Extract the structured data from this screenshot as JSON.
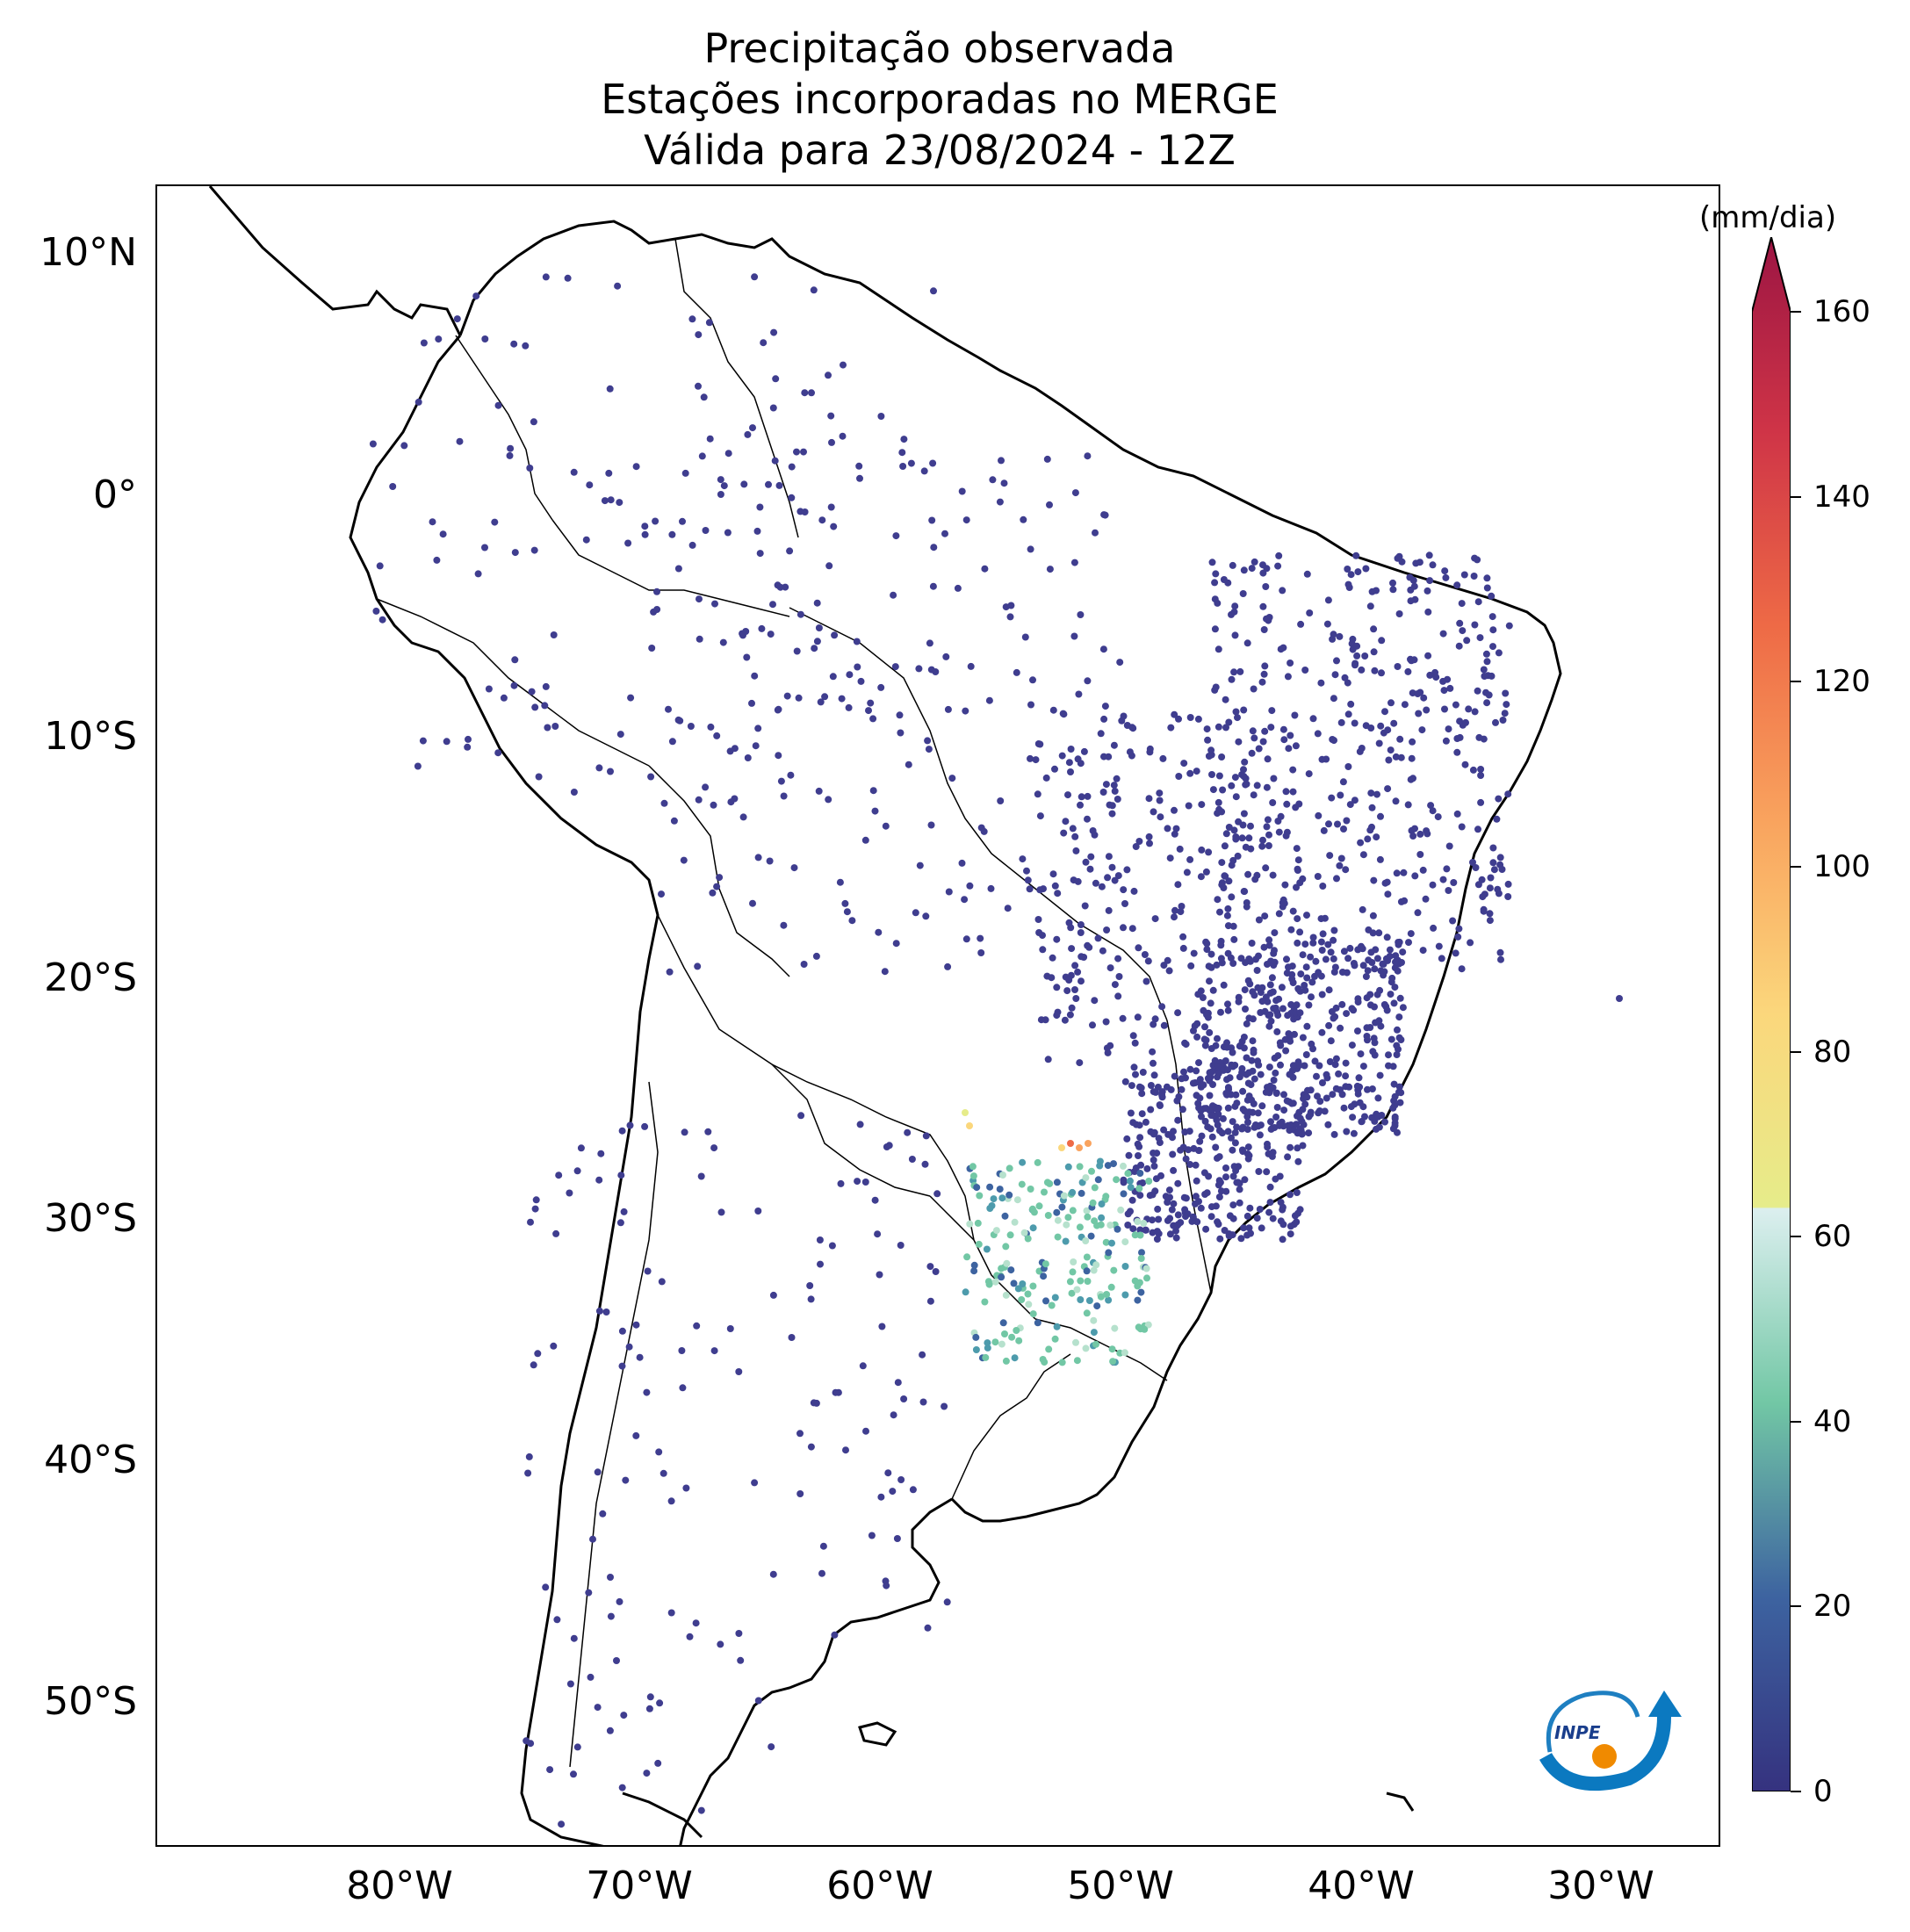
{
  "title": {
    "line1": "Precipitação observada",
    "line2": "Estações incorporadas no MERGE",
    "line3": "Válida para 23/08/2024 - 12Z"
  },
  "map": {
    "lat_labels": [
      "10°N",
      "0°",
      "10°S",
      "20°S",
      "30°S",
      "40°S",
      "50°S"
    ],
    "lon_labels": [
      "80°W",
      "70°W",
      "60°W",
      "50°W",
      "40°W",
      "30°W"
    ],
    "extent": {
      "lon_min": -90,
      "lon_max": -25,
      "lat_min": -56,
      "lat_max": 13
    },
    "station_default_color": "#3f3d8f"
  },
  "colorbar": {
    "unit": "(mm/dia)",
    "ticks": [
      "0",
      "20",
      "40",
      "60",
      "80",
      "100",
      "120",
      "140",
      "160"
    ],
    "colors": [
      "#35327f",
      "#3d63a0",
      "#4d9bac",
      "#72c7a5",
      "#b6e1cd",
      "#dcefef",
      "#e6ec8a",
      "#fbd77c",
      "#f9a35e",
      "#ee6a46",
      "#cf3447",
      "#9c1543"
    ]
  },
  "logo": {
    "text": "INPE"
  }
}
